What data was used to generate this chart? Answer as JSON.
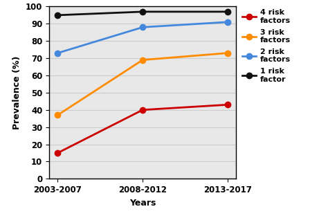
{
  "x_labels": [
    "2003-2007",
    "2008-2012",
    "2013-2017"
  ],
  "series": [
    {
      "label": "4 risk\nfactors",
      "values": [
        15,
        40,
        43
      ],
      "color": "#cc0000",
      "marker": "o"
    },
    {
      "label": "3 risk\nfactors",
      "values": [
        37,
        69,
        73
      ],
      "color": "#ff8c00",
      "marker": "o"
    },
    {
      "label": "2 risk\nfactors",
      "values": [
        73,
        88,
        91
      ],
      "color": "#4488dd",
      "marker": "o"
    },
    {
      "label": "1 risk\nfactor",
      "values": [
        95,
        97,
        97
      ],
      "color": "#111111",
      "marker": "o"
    }
  ],
  "ylabel": "Prevalence (%)",
  "xlabel": "Years",
  "ylim": [
    0,
    100
  ],
  "yticks": [
    0,
    10,
    20,
    30,
    40,
    50,
    60,
    70,
    80,
    90,
    100
  ],
  "linewidth": 2.0,
  "markersize": 6,
  "fig_width": 4.74,
  "fig_height": 3.15,
  "dpi": 100
}
